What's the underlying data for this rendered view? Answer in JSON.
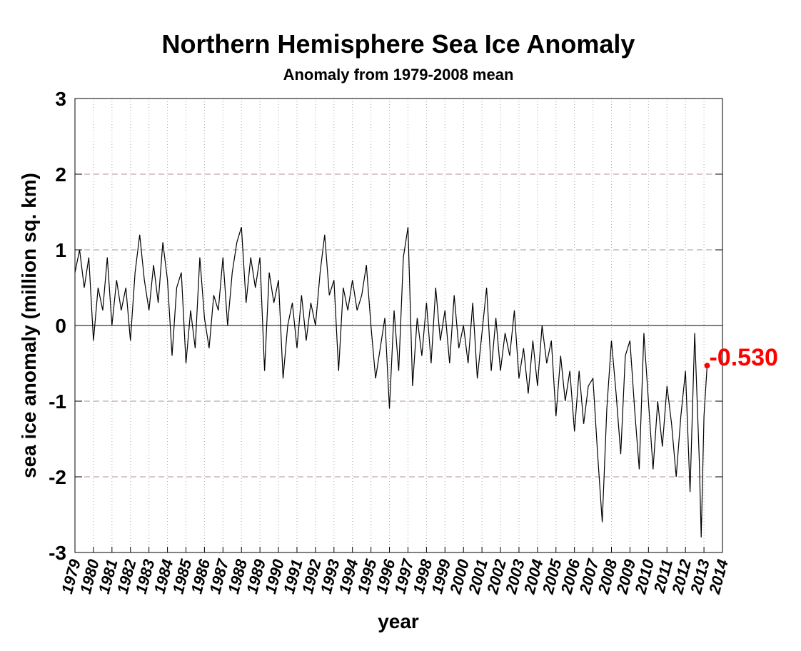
{
  "chart_data": {
    "type": "line",
    "title": "Northern Hemisphere Sea Ice Anomaly",
    "subtitle": "Anomaly from 1979-2008 mean",
    "x_label": "year",
    "y_label": "sea ice anomaly (million sq. km)",
    "x": [
      1979,
      1979.25,
      1979.5,
      1979.75,
      1980,
      1980.25,
      1980.5,
      1980.75,
      1981,
      1981.25,
      1981.5,
      1981.75,
      1982,
      1982.25,
      1982.5,
      1982.75,
      1983,
      1983.25,
      1983.5,
      1983.75,
      1984,
      1984.25,
      1984.5,
      1984.75,
      1985,
      1985.25,
      1985.5,
      1985.75,
      1986,
      1986.25,
      1986.5,
      1986.75,
      1987,
      1987.25,
      1987.5,
      1987.75,
      1988,
      1988.25,
      1988.5,
      1988.75,
      1989,
      1989.25,
      1989.5,
      1989.75,
      1990,
      1990.25,
      1990.5,
      1990.75,
      1991,
      1991.25,
      1991.5,
      1991.75,
      1992,
      1992.25,
      1992.5,
      1992.75,
      1993,
      1993.25,
      1993.5,
      1993.75,
      1994,
      1994.25,
      1994.5,
      1994.75,
      1995,
      1995.25,
      1995.5,
      1995.75,
      1996,
      1996.25,
      1996.5,
      1996.75,
      1997,
      1997.25,
      1997.5,
      1997.75,
      1998,
      1998.25,
      1998.5,
      1998.75,
      1999,
      1999.25,
      1999.5,
      1999.75,
      2000,
      2000.25,
      2000.5,
      2000.75,
      2001,
      2001.25,
      2001.5,
      2001.75,
      2002,
      2002.25,
      2002.5,
      2002.75,
      2003,
      2003.25,
      2003.5,
      2003.75,
      2004,
      2004.25,
      2004.5,
      2004.75,
      2005,
      2005.25,
      2005.5,
      2005.75,
      2006,
      2006.25,
      2006.5,
      2006.75,
      2007,
      2007.25,
      2007.5,
      2007.75,
      2008,
      2008.25,
      2008.5,
      2008.75,
      2009,
      2009.25,
      2009.5,
      2009.75,
      2010,
      2010.25,
      2010.5,
      2010.75,
      2011,
      2011.25,
      2011.5,
      2011.75,
      2012,
      2012.25,
      2012.5,
      2012.75,
      2012.85,
      2013,
      2013.17
    ],
    "series": [
      {
        "name": "anomaly",
        "color": "#000000",
        "values": [
          0.7,
          1.0,
          0.5,
          0.9,
          -0.2,
          0.5,
          0.2,
          0.9,
          0.0,
          0.6,
          0.2,
          0.5,
          -0.2,
          0.7,
          1.2,
          0.6,
          0.2,
          0.8,
          0.3,
          1.1,
          0.6,
          -0.4,
          0.5,
          0.7,
          -0.5,
          0.2,
          -0.3,
          0.9,
          0.1,
          -0.3,
          0.4,
          0.2,
          0.9,
          0.0,
          0.7,
          1.1,
          1.3,
          0.3,
          0.9,
          0.5,
          0.9,
          -0.6,
          0.7,
          0.3,
          0.6,
          -0.7,
          0.0,
          0.3,
          -0.3,
          0.4,
          -0.2,
          0.3,
          0.0,
          0.7,
          1.2,
          0.4,
          0.6,
          -0.6,
          0.5,
          0.2,
          0.6,
          0.2,
          0.4,
          0.8,
          0.0,
          -0.7,
          -0.3,
          0.1,
          -1.1,
          0.2,
          -0.6,
          0.9,
          1.3,
          -0.8,
          0.1,
          -0.4,
          0.3,
          -0.5,
          0.5,
          -0.2,
          0.2,
          -0.5,
          0.4,
          -0.3,
          0.0,
          -0.5,
          0.3,
          -0.7,
          -0.1,
          0.5,
          -0.6,
          0.1,
          -0.6,
          -0.1,
          -0.4,
          0.2,
          -0.7,
          -0.3,
          -0.9,
          -0.2,
          -0.8,
          0.0,
          -0.5,
          -0.2,
          -1.2,
          -0.4,
          -1.0,
          -0.6,
          -1.4,
          -0.6,
          -1.3,
          -0.8,
          -0.7,
          -1.7,
          -2.6,
          -1.1,
          -0.2,
          -0.9,
          -1.7,
          -0.4,
          -0.2,
          -1.1,
          -1.9,
          -0.1,
          -1.0,
          -1.9,
          -1.0,
          -1.6,
          -0.8,
          -1.3,
          -2.0,
          -1.2,
          -0.6,
          -2.2,
          -0.1,
          -1.8,
          -2.8,
          -1.2,
          -0.53
        ]
      }
    ],
    "annotation": {
      "text": "-0.530",
      "color": "#ff0000"
    },
    "xlim": [
      1979,
      2014
    ],
    "xticks": [
      1979,
      1980,
      1981,
      1982,
      1983,
      1984,
      1985,
      1986,
      1987,
      1988,
      1989,
      1990,
      1991,
      1992,
      1993,
      1994,
      1995,
      1996,
      1997,
      1998,
      1999,
      2000,
      2001,
      2002,
      2003,
      2004,
      2005,
      2006,
      2007,
      2008,
      2009,
      2010,
      2011,
      2012,
      2013,
      2014
    ],
    "ylim": [
      -3,
      3
    ],
    "yticks": [
      -3,
      -2,
      -1,
      0,
      1,
      2,
      3
    ],
    "grid": true
  }
}
